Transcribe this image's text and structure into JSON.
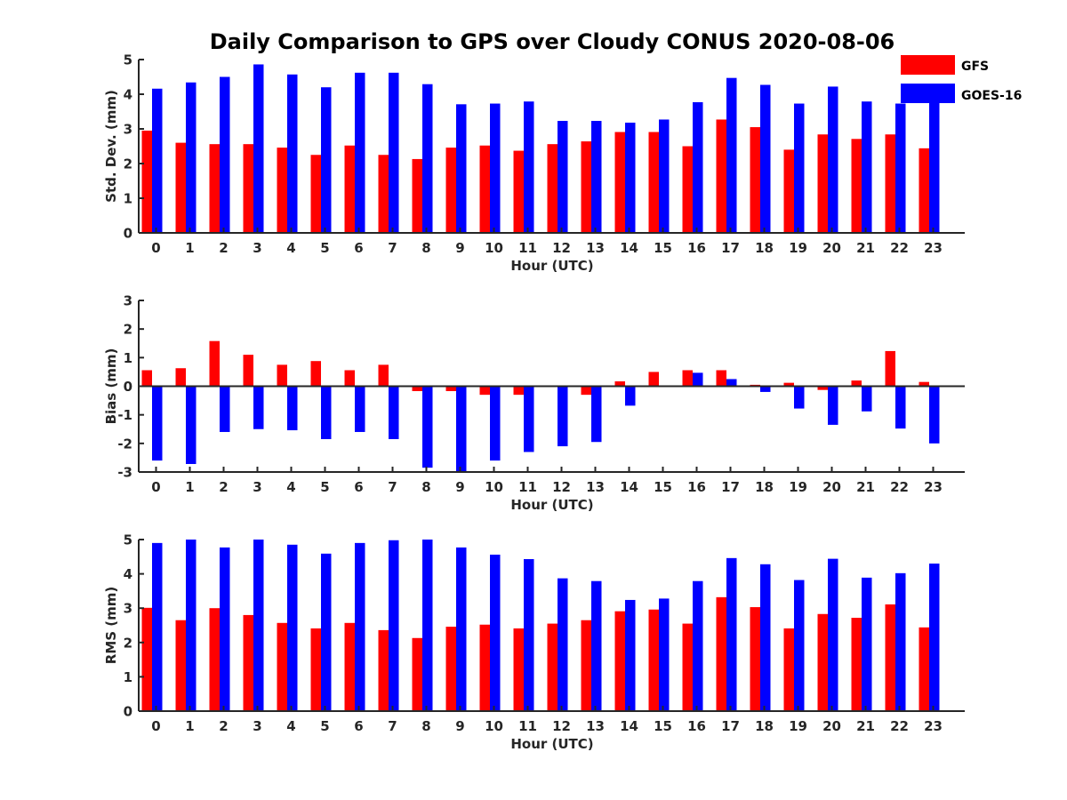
{
  "chart_data": {
    "title": "Daily Comparison to GPS over Cloudy CONUS 2020-08-06",
    "type": "bar",
    "legend": {
      "placement": "top-right",
      "entries": [
        {
          "name": "GFS",
          "color": "#ff0000"
        },
        {
          "name": "GOES-16",
          "color": "#0000ff"
        }
      ]
    },
    "colors": {
      "GFS": "#ff0000",
      "GOES-16": "#0000ff"
    },
    "categories": [
      "0",
      "1",
      "2",
      "3",
      "4",
      "5",
      "6",
      "7",
      "8",
      "9",
      "10",
      "11",
      "12",
      "13",
      "14",
      "15",
      "16",
      "17",
      "18",
      "19",
      "20",
      "21",
      "22",
      "23"
    ],
    "panels": [
      {
        "ylabel": "Std. Dev. (mm)",
        "xlabel": "Hour (UTC)",
        "ylim": [
          0,
          5
        ],
        "yticks": [
          "0",
          "1",
          "2",
          "3",
          "4",
          "5"
        ],
        "series": [
          {
            "name": "GFS",
            "values": [
              2.95,
              2.6,
              2.56,
              2.56,
              2.46,
              2.25,
              2.52,
              2.25,
              2.13,
              2.46,
              2.52,
              2.37,
              2.56,
              2.64,
              2.91,
              2.91,
              2.5,
              3.27,
              3.05,
              2.4,
              2.84,
              2.71,
              2.84,
              2.44
            ]
          },
          {
            "name": "GOES-16",
            "values": [
              4.16,
              4.34,
              4.5,
              4.86,
              4.57,
              4.2,
              4.62,
              4.62,
              4.29,
              3.71,
              3.73,
              3.79,
              3.23,
              3.23,
              3.18,
              3.27,
              3.77,
              4.47,
              4.27,
              3.73,
              4.22,
              3.79,
              3.73,
              3.81
            ]
          }
        ]
      },
      {
        "ylabel": "Bias (mm)",
        "xlabel": "Hour (UTC)",
        "ylim": [
          -3,
          3
        ],
        "yticks": [
          "-3",
          "-2",
          "-1",
          "0",
          "1",
          "2",
          "3"
        ],
        "series": [
          {
            "name": "GFS",
            "values": [
              0.56,
              0.63,
              1.58,
              1.1,
              0.75,
              0.88,
              0.56,
              0.75,
              -0.17,
              -0.17,
              -0.3,
              -0.3,
              0,
              -0.3,
              0.17,
              0.5,
              0.56,
              0.56,
              0.05,
              0.12,
              -0.13,
              0.2,
              1.23,
              0.15
            ]
          },
          {
            "name": "GOES-16",
            "values": [
              -2.6,
              -2.72,
              -1.6,
              -1.5,
              -1.54,
              -1.85,
              -1.6,
              -1.85,
              -2.85,
              -3.0,
              -2.6,
              -2.3,
              -2.1,
              -1.95,
              -0.68,
              0,
              0.47,
              0.25,
              -0.2,
              -0.78,
              -1.35,
              -0.88,
              -1.48,
              -2.0
            ]
          }
        ]
      },
      {
        "ylabel": "RMS (mm)",
        "xlabel": "Hour (UTC)",
        "ylim": [
          0,
          5
        ],
        "yticks": [
          "0",
          "1",
          "2",
          "3",
          "4",
          "5"
        ],
        "series": [
          {
            "name": "GFS",
            "values": [
              3.01,
              2.65,
              3.0,
              2.8,
              2.57,
              2.41,
              2.57,
              2.36,
              2.13,
              2.46,
              2.52,
              2.41,
              2.55,
              2.65,
              2.91,
              2.96,
              2.55,
              3.32,
              3.03,
              2.41,
              2.83,
              2.72,
              3.11,
              2.44
            ]
          },
          {
            "name": "GOES-16",
            "values": [
              4.9,
              5.0,
              4.77,
              5.0,
              4.85,
              4.59,
              4.9,
              4.98,
              5.0,
              4.77,
              4.56,
              4.43,
              3.87,
              3.79,
              3.24,
              3.28,
              3.79,
              4.46,
              4.28,
              3.82,
              4.44,
              3.89,
              4.02,
              4.3
            ]
          }
        ]
      }
    ]
  }
}
